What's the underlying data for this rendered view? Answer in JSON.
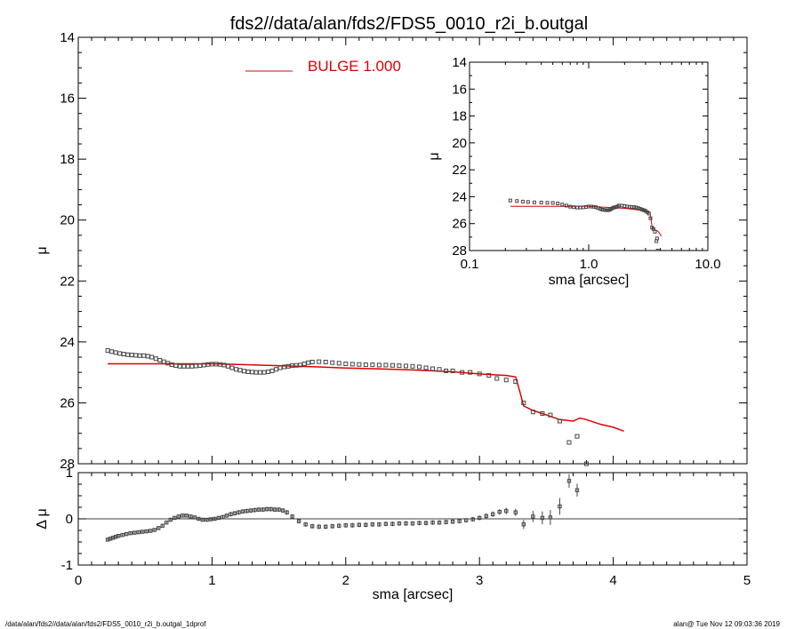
{
  "title": "fds2//data/alan/fds2/FDS5_0010_r2i_b.outgal",
  "footer_left": "/data/alan/fds2//data/alan/fds2/FDS5_0010_r2i_b.outgal_1dprof",
  "footer_right": "alan@  Tue Nov 12 09:03:36 2019",
  "colors": {
    "model": "#e00000",
    "data": "#000000",
    "axes": "#000000"
  },
  "chart_data": [
    {
      "id": "main-profile",
      "type": "scatter",
      "xlabel": "",
      "ylabel": "μ",
      "xlim": [
        0,
        5
      ],
      "ylim": [
        28,
        14
      ],
      "y_inverted": true,
      "yticks": [
        "14",
        "16",
        "18",
        "20",
        "22",
        "24",
        "26",
        "28"
      ],
      "legend": {
        "label": "BULGE  1.000",
        "position": "top-center",
        "color": "#e00000"
      },
      "series": [
        {
          "name": "BULGE  1.000",
          "kind": "line",
          "x": [
            0.22,
            0.5,
            0.8,
            1.0,
            1.2,
            1.5,
            1.8,
            2.0,
            2.2,
            2.5,
            2.8,
            3.0,
            3.2,
            3.27,
            3.3,
            3.33,
            3.4,
            3.5,
            3.6,
            3.7,
            3.75,
            3.8,
            3.9,
            4.0,
            4.08
          ],
          "y": [
            24.72,
            24.72,
            24.72,
            24.72,
            24.74,
            24.78,
            24.82,
            24.86,
            24.88,
            24.92,
            24.98,
            25.05,
            25.1,
            25.15,
            25.6,
            26.1,
            26.25,
            26.4,
            26.55,
            26.6,
            26.5,
            26.55,
            26.7,
            26.8,
            26.93
          ]
        },
        {
          "name": "",
          "kind": "points",
          "x": [
            0.22,
            0.25,
            0.28,
            0.31,
            0.34,
            0.37,
            0.4,
            0.43,
            0.46,
            0.49,
            0.52,
            0.55,
            0.58,
            0.61,
            0.64,
            0.67,
            0.7,
            0.73,
            0.76,
            0.79,
            0.82,
            0.85,
            0.88,
            0.91,
            0.94,
            0.97,
            1.0,
            1.03,
            1.06,
            1.09,
            1.12,
            1.15,
            1.18,
            1.21,
            1.24,
            1.27,
            1.3,
            1.33,
            1.36,
            1.39,
            1.42,
            1.45,
            1.48,
            1.51,
            1.54,
            1.57,
            1.6,
            1.63,
            1.66,
            1.69,
            1.72,
            1.75,
            1.8,
            1.85,
            1.9,
            1.95,
            2.0,
            2.05,
            2.1,
            2.15,
            2.2,
            2.25,
            2.3,
            2.35,
            2.4,
            2.45,
            2.5,
            2.55,
            2.6,
            2.65,
            2.7,
            2.75,
            2.8,
            2.87,
            2.93,
            3.0,
            3.07,
            3.13,
            3.2,
            3.27,
            3.33,
            3.4,
            3.47,
            3.53,
            3.6,
            3.67,
            3.73,
            3.8
          ],
          "y": [
            24.28,
            24.32,
            24.35,
            24.38,
            24.4,
            24.42,
            24.43,
            24.44,
            24.45,
            24.45,
            24.47,
            24.5,
            24.55,
            24.6,
            24.65,
            24.7,
            24.75,
            24.78,
            24.8,
            24.8,
            24.8,
            24.8,
            24.79,
            24.78,
            24.76,
            24.74,
            24.73,
            24.73,
            24.74,
            24.76,
            24.8,
            24.85,
            24.9,
            24.93,
            24.96,
            24.98,
            24.99,
            25.0,
            25.0,
            25.0,
            24.98,
            24.95,
            24.9,
            24.85,
            24.82,
            24.8,
            24.78,
            24.77,
            24.76,
            24.72,
            24.68,
            24.66,
            24.65,
            24.66,
            24.68,
            24.7,
            24.72,
            24.73,
            24.74,
            24.75,
            24.75,
            24.76,
            24.76,
            24.77,
            24.78,
            24.79,
            24.8,
            24.82,
            24.85,
            24.88,
            24.9,
            24.95,
            24.95,
            25.0,
            25.0,
            25.05,
            25.1,
            25.2,
            25.25,
            25.3,
            26.0,
            26.3,
            26.35,
            26.4,
            26.6,
            27.3,
            27.1,
            28.0
          ]
        }
      ]
    },
    {
      "id": "inset-log",
      "type": "scatter",
      "xlabel": "sma [arcsec]",
      "ylabel": "μ",
      "xscale": "log",
      "xlim": [
        0.1,
        10.0
      ],
      "xticks": [
        "0.1",
        "1.0",
        "10.0"
      ],
      "ylim": [
        28,
        14
      ],
      "y_inverted": true,
      "yticks": [
        "14",
        "16",
        "18",
        "20",
        "22",
        "24",
        "26",
        "28"
      ],
      "series": [
        {
          "name": "",
          "kind": "line",
          "x": [
            0.22,
            0.5,
            1.0,
            2.0,
            3.0,
            3.27,
            3.4,
            3.6,
            3.8,
            4.08
          ],
          "y": [
            24.72,
            24.72,
            24.72,
            24.86,
            25.05,
            25.15,
            26.2,
            26.5,
            26.55,
            26.93
          ]
        },
        {
          "name": "",
          "kind": "points",
          "x": [
            0.22,
            0.25,
            0.28,
            0.31,
            0.35,
            0.4,
            0.45,
            0.5,
            0.55,
            0.6,
            0.65,
            0.7,
            0.75,
            0.8,
            0.85,
            0.9,
            0.95,
            1.0,
            1.05,
            1.1,
            1.15,
            1.2,
            1.25,
            1.3,
            1.35,
            1.4,
            1.45,
            1.5,
            1.55,
            1.6,
            1.65,
            1.7,
            1.75,
            1.8,
            1.9,
            2.0,
            2.1,
            2.2,
            2.3,
            2.4,
            2.5,
            2.6,
            2.7,
            2.8,
            2.9,
            3.0,
            3.1,
            3.2,
            3.3,
            3.4,
            3.5,
            3.6,
            3.7,
            3.75,
            3.8
          ],
          "y": [
            24.28,
            24.32,
            24.36,
            24.39,
            24.42,
            24.43,
            24.45,
            24.46,
            24.5,
            24.58,
            24.66,
            24.74,
            24.78,
            24.8,
            24.8,
            24.79,
            24.76,
            24.73,
            24.73,
            24.75,
            24.78,
            24.85,
            24.9,
            24.96,
            24.98,
            25.0,
            25.0,
            24.98,
            24.9,
            24.82,
            24.79,
            24.77,
            24.72,
            24.66,
            24.66,
            24.7,
            24.73,
            24.75,
            24.76,
            24.77,
            24.8,
            24.84,
            24.9,
            24.95,
            25.0,
            25.05,
            25.15,
            25.25,
            25.6,
            26.3,
            26.4,
            26.6,
            27.3,
            27.1,
            28.0
          ]
        }
      ]
    },
    {
      "id": "residuals",
      "type": "scatter",
      "xlabel": "sma [arcsec]",
      "ylabel": "Δ μ",
      "xlim": [
        0,
        5
      ],
      "xticks": [
        "0",
        "1",
        "2",
        "3",
        "4",
        "5"
      ],
      "ylim": [
        -1,
        1
      ],
      "yticks": [
        "-1",
        "0",
        "1"
      ],
      "series": [
        {
          "name": "",
          "kind": "points-with-errorbars",
          "x": [
            0.22,
            0.24,
            0.26,
            0.28,
            0.3,
            0.33,
            0.36,
            0.39,
            0.42,
            0.45,
            0.48,
            0.51,
            0.54,
            0.57,
            0.6,
            0.63,
            0.66,
            0.69,
            0.72,
            0.75,
            0.78,
            0.81,
            0.84,
            0.87,
            0.9,
            0.93,
            0.96,
            0.99,
            1.02,
            1.05,
            1.08,
            1.11,
            1.14,
            1.17,
            1.2,
            1.23,
            1.26,
            1.29,
            1.32,
            1.35,
            1.38,
            1.41,
            1.44,
            1.47,
            1.5,
            1.53,
            1.56,
            1.6,
            1.65,
            1.7,
            1.75,
            1.8,
            1.85,
            1.9,
            1.95,
            2.0,
            2.05,
            2.1,
            2.15,
            2.2,
            2.25,
            2.3,
            2.35,
            2.4,
            2.45,
            2.5,
            2.55,
            2.6,
            2.65,
            2.7,
            2.75,
            2.8,
            2.85,
            2.9,
            2.95,
            3.0,
            3.05,
            3.1,
            3.15,
            3.2,
            3.27,
            3.33,
            3.4,
            3.47,
            3.53,
            3.6,
            3.67,
            3.73
          ],
          "y": [
            -0.45,
            -0.43,
            -0.41,
            -0.39,
            -0.37,
            -0.35,
            -0.33,
            -0.31,
            -0.3,
            -0.29,
            -0.28,
            -0.27,
            -0.26,
            -0.24,
            -0.2,
            -0.15,
            -0.08,
            -0.02,
            0.02,
            0.05,
            0.07,
            0.07,
            0.05,
            0.03,
            0.0,
            -0.02,
            -0.02,
            -0.01,
            0.0,
            0.02,
            0.04,
            0.07,
            0.1,
            0.12,
            0.14,
            0.16,
            0.17,
            0.18,
            0.19,
            0.2,
            0.2,
            0.21,
            0.21,
            0.2,
            0.2,
            0.18,
            0.14,
            0.05,
            -0.05,
            -0.12,
            -0.16,
            -0.17,
            -0.17,
            -0.16,
            -0.15,
            -0.14,
            -0.14,
            -0.13,
            -0.13,
            -0.12,
            -0.12,
            -0.11,
            -0.11,
            -0.1,
            -0.1,
            -0.1,
            -0.09,
            -0.09,
            -0.08,
            -0.08,
            -0.07,
            -0.06,
            -0.05,
            -0.03,
            -0.01,
            0.02,
            0.06,
            0.1,
            0.15,
            0.17,
            0.14,
            -0.12,
            0.05,
            0.02,
            0.03,
            0.27,
            0.82,
            0.62
          ],
          "yerr": [
            0.03,
            0.03,
            0.03,
            0.03,
            0.03,
            0.03,
            0.03,
            0.03,
            0.03,
            0.03,
            0.03,
            0.03,
            0.03,
            0.03,
            0.03,
            0.04,
            0.04,
            0.04,
            0.04,
            0.04,
            0.04,
            0.04,
            0.04,
            0.04,
            0.04,
            0.04,
            0.04,
            0.04,
            0.04,
            0.04,
            0.04,
            0.04,
            0.05,
            0.05,
            0.05,
            0.05,
            0.05,
            0.05,
            0.05,
            0.05,
            0.05,
            0.05,
            0.05,
            0.05,
            0.05,
            0.05,
            0.05,
            0.05,
            0.05,
            0.05,
            0.05,
            0.05,
            0.05,
            0.05,
            0.05,
            0.05,
            0.05,
            0.05,
            0.05,
            0.05,
            0.05,
            0.05,
            0.05,
            0.05,
            0.05,
            0.05,
            0.05,
            0.05,
            0.05,
            0.05,
            0.05,
            0.05,
            0.05,
            0.05,
            0.05,
            0.05,
            0.06,
            0.06,
            0.06,
            0.07,
            0.08,
            0.1,
            0.12,
            0.14,
            0.16,
            0.18,
            0.15,
            0.14
          ]
        },
        {
          "name": "",
          "kind": "reference-line",
          "y": 0
        }
      ]
    }
  ]
}
